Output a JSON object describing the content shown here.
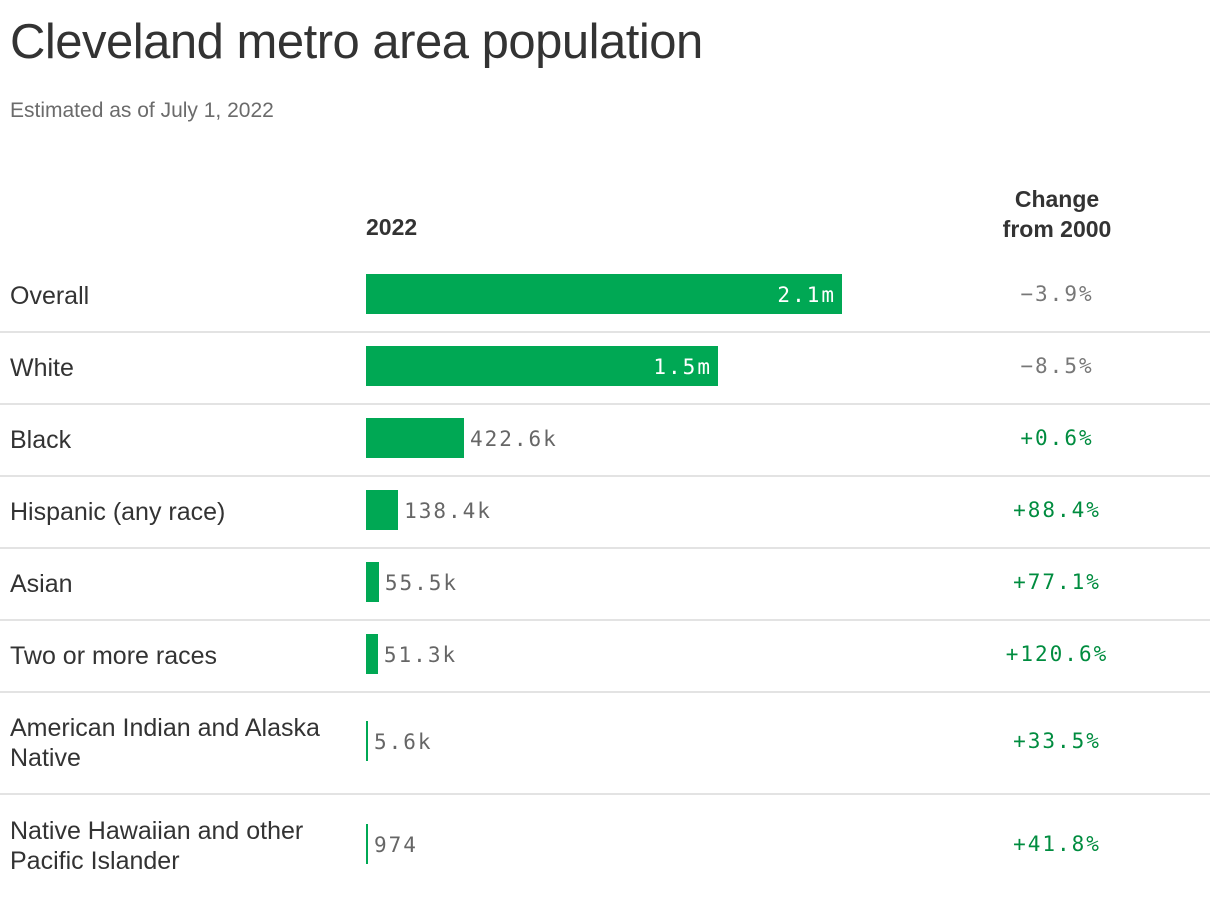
{
  "chart_data": {
    "type": "bar",
    "title": "Cleveland metro area population",
    "subtitle": "Estimated as of July 1, 2022",
    "columns": {
      "value": "2022",
      "change": "Change from 2000"
    },
    "categories": [
      "Overall",
      "White",
      "Black",
      "Hispanic (any race)",
      "Asian",
      "Two or more races",
      "American Indian and Alaska Native",
      "Native Hawaiian and other Pacific Islander"
    ],
    "values": [
      2053000,
      1518000,
      422600,
      138400,
      55500,
      51300,
      5600,
      974
    ],
    "value_labels": [
      "2.1m",
      "1.5m",
      "422.6k",
      "138.4k",
      "55.5k",
      "51.3k",
      "5.6k",
      "974"
    ],
    "change_labels": [
      "−3.9%",
      "−8.5%",
      "+0.6%",
      "+88.4%",
      "+77.1%",
      "+120.6%",
      "+33.5%",
      "+41.8%"
    ],
    "change_values": [
      -3.9,
      -8.5,
      0.6,
      88.4,
      77.1,
      120.6,
      33.5,
      41.8
    ],
    "colors": {
      "bar": "#00a854",
      "positive": "#008c3f",
      "negative": "#777777"
    }
  }
}
